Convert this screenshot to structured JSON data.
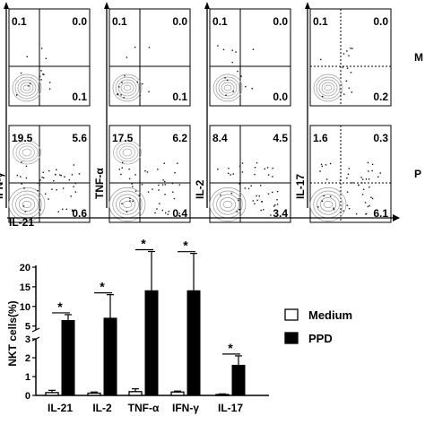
{
  "flow": {
    "rows": [
      {
        "label": "M",
        "condition": "Medium"
      },
      {
        "label": "P",
        "condition": "PPD"
      }
    ],
    "x_axis_label": "IL-21",
    "panels": [
      {
        "ylabel": "IFN-γ",
        "ylabel_shown": "IFN-γ",
        "medium": {
          "tl": "0.1",
          "tr": "0.0",
          "br": "0.1"
        },
        "ppd": {
          "tl": "19.5",
          "tr": "5.6",
          "br": "0.6"
        }
      },
      {
        "ylabel": "TNF-α",
        "medium": {
          "tl": "0.1",
          "tr": "0.0",
          "br": "0.1"
        },
        "ppd": {
          "tl": "17.5",
          "tr": "6.2",
          "br": "0.4"
        }
      },
      {
        "ylabel": "IL-2",
        "medium": {
          "tl": "0.1",
          "tr": "0.0",
          "br": "0.0"
        },
        "ppd": {
          "tl": "8.4",
          "tr": "4.5",
          "br": "3.4"
        }
      },
      {
        "ylabel": "IL-17",
        "medium": {
          "tl": "0.1",
          "tr": "0.0",
          "br": "0.2"
        },
        "ppd": {
          "tl": "1.6",
          "tr": "0.3",
          "br": "6.1"
        }
      }
    ]
  },
  "chart_data": {
    "type": "bar",
    "categories": [
      "IL-21",
      "IL-2",
      "TNF-α",
      "IFN-γ",
      "IL-17"
    ],
    "ylabel": "NKT cells(%)",
    "axis_break": {
      "lower": [
        0,
        3
      ],
      "upper": [
        4,
        20
      ]
    },
    "lower_ticks": [
      0,
      1,
      2,
      3
    ],
    "upper_ticks": [
      5,
      10,
      15,
      20
    ],
    "series": [
      {
        "name": "Medium",
        "color": "#ffffff",
        "values": [
          0.15,
          0.12,
          0.2,
          0.18,
          0.05
        ],
        "errors": [
          0.12,
          0.06,
          0.15,
          0.05,
          0.03
        ]
      },
      {
        "name": "PPD",
        "color": "#000000",
        "values": [
          6.4,
          7.0,
          14.0,
          14.0,
          1.6
        ],
        "errors": [
          1.5,
          6.0,
          10.0,
          9.5,
          0.5
        ]
      }
    ],
    "significance": [
      "*",
      "*",
      "*",
      "*",
      "*"
    ],
    "legend_position": "right"
  }
}
